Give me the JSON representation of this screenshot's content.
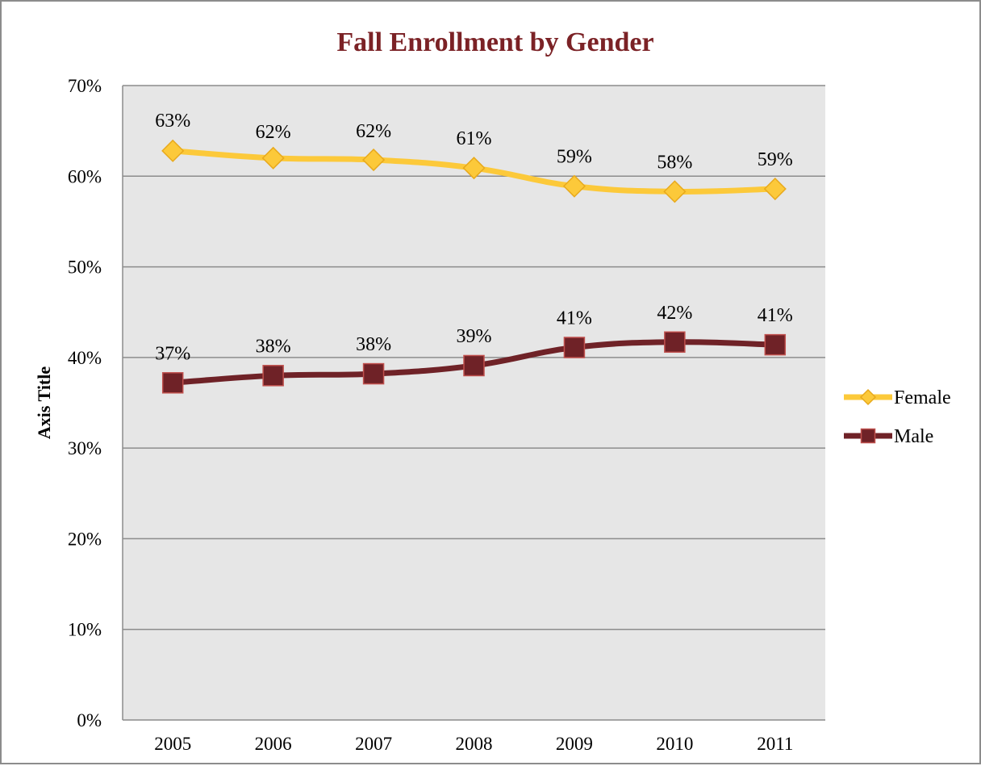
{
  "chart_data": {
    "type": "line",
    "title": "Fall Enrollment by Gender",
    "xlabel": "",
    "ylabel": "Axis Title",
    "categories": [
      "2005",
      "2006",
      "2007",
      "2008",
      "2009",
      "2010",
      "2011"
    ],
    "ylim": [
      0,
      70
    ],
    "y_ticks": [
      "0%",
      "10%",
      "20%",
      "30%",
      "40%",
      "50%",
      "60%",
      "70%"
    ],
    "grid": true,
    "legend_position": "right",
    "series": [
      {
        "name": "Female",
        "values": [
          62.8,
          62.0,
          61.8,
          60.9,
          58.9,
          58.3,
          58.6
        ],
        "labels": [
          "63%",
          "62%",
          "62%",
          "61%",
          "59%",
          "58%",
          "59%"
        ],
        "color": "#fcc93a",
        "marker": "diamond"
      },
      {
        "name": "Male",
        "values": [
          37.2,
          38.0,
          38.2,
          39.1,
          41.1,
          41.7,
          41.4
        ],
        "labels": [
          "37%",
          "38%",
          "38%",
          "39%",
          "41%",
          "42%",
          "41%"
        ],
        "color": "#6f2227",
        "marker": "square"
      }
    ]
  },
  "colors": {
    "plot_background": "#e6e6e6",
    "gridline": "#8c8c8c",
    "title": "#7b2226"
  }
}
